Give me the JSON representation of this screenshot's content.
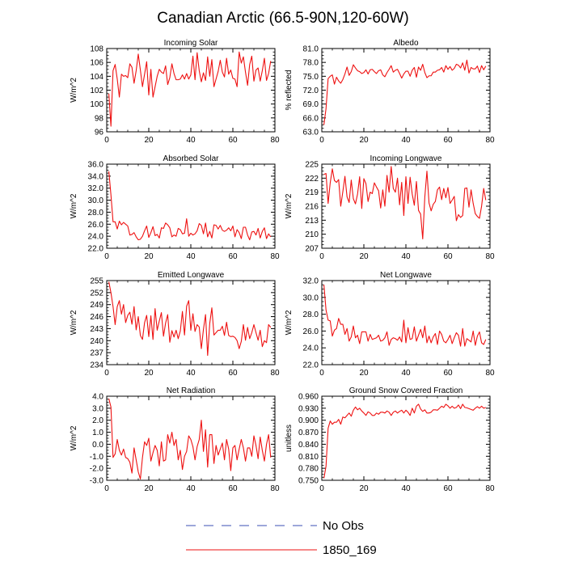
{
  "title": "Canadian Arctic (66.5-90N,120-60W)",
  "legend": {
    "entries": [
      {
        "label": "No Obs",
        "color": "#3b4fb5",
        "dash": true
      },
      {
        "label": "1850_169",
        "color": "#ee1111",
        "dash": false
      }
    ]
  },
  "chart_data": [
    {
      "type": "line",
      "title": "Incoming Solar",
      "ylabel": "W/m^2",
      "ylim": [
        96,
        108
      ],
      "yticks": [
        "96",
        "98",
        "100",
        "102",
        "104",
        "106",
        "108"
      ],
      "xlim": [
        0,
        80
      ],
      "xticks": [
        "0",
        "20",
        "40",
        "60",
        "80"
      ],
      "series": [
        {
          "name": "1850_169",
          "color": "#ee1111",
          "x_start": 1,
          "x_step": 1,
          "values": [
            101.5,
            96.8,
            104.8,
            105.7,
            103.6,
            101.0,
            104.3,
            104.0,
            104.1,
            103.8,
            105.8,
            105.3,
            103.0,
            104.8,
            107.2,
            104.9,
            102.5,
            104.3,
            106.1,
            101.3,
            105.0,
            101.0,
            102.5,
            104.0,
            105.0,
            104.6,
            104.4,
            105.5,
            102.8,
            103.8,
            105.8,
            104.4,
            103.5,
            103.5,
            103.6,
            104.2,
            103.6,
            104.4,
            103.6,
            104.2,
            106.9,
            103.5,
            107.4,
            104.8,
            103.2,
            104.5,
            103.4,
            106.8,
            104.0,
            106.4,
            102.5,
            103.6,
            104.7,
            106.3,
            104.6,
            103.9,
            106.6,
            104.3,
            104.9,
            103.7,
            103.6,
            102.5,
            107.5,
            105.9,
            106.8,
            104.6,
            102.7,
            105.7,
            106.9,
            103.3,
            104.9,
            105.2,
            103.3,
            104.8,
            106.6,
            103.4,
            104.4,
            106.2
          ]
        }
      ]
    },
    {
      "type": "line",
      "title": "Albedo",
      "ylabel": "% reflected",
      "ylim": [
        63.0,
        81.0
      ],
      "yticks": [
        "63.0",
        "66.0",
        "69.0",
        "72.0",
        "75.0",
        "78.0",
        "81.0"
      ],
      "xlim": [
        0,
        80
      ],
      "xticks": [
        "0",
        "20",
        "40",
        "60",
        "80"
      ],
      "series": [
        {
          "name": "1850_169",
          "color": "#ee1111",
          "x_start": 1,
          "x_step": 1,
          "values": [
            64.5,
            68.0,
            74.5,
            75.0,
            75.3,
            73.3,
            74.8,
            74.0,
            73.5,
            74.3,
            75.5,
            77.0,
            75.2,
            76.0,
            77.5,
            76.8,
            76.2,
            76.0,
            75.6,
            75.8,
            76.4,
            75.5,
            76.4,
            76.5,
            76.0,
            75.6,
            76.2,
            76.4,
            75.3,
            74.9,
            75.8,
            76.5,
            77.3,
            75.9,
            76.3,
            76.5,
            75.6,
            74.6,
            75.5,
            76.1,
            76.1,
            75.0,
            76.3,
            76.9,
            74.8,
            77.0,
            76.3,
            77.6,
            75.8,
            74.7,
            75.1,
            75.1,
            75.9,
            75.9,
            76.3,
            76.4,
            76.9,
            75.9,
            77.3,
            76.5,
            77.1,
            76.3,
            76.7,
            77.6,
            77.4,
            76.8,
            77.9,
            76.3,
            78.5,
            75.7,
            76.9,
            76.6,
            76.6,
            77.2,
            75.8,
            77.3,
            76.4,
            77.2
          ]
        }
      ]
    },
    {
      "type": "line",
      "title": "Absorbed Solar",
      "ylabel": "W/m^2",
      "ylim": [
        22.0,
        36.0
      ],
      "yticks": [
        "22.0",
        "24.0",
        "26.0",
        "28.0",
        "30.0",
        "32.0",
        "34.0",
        "36.0"
      ],
      "xlim": [
        0,
        80
      ],
      "xticks": [
        "0",
        "20",
        "40",
        "60",
        "80"
      ],
      "series": [
        {
          "name": "1850_169",
          "color": "#ee1111",
          "x_start": 1,
          "x_step": 1,
          "values": [
            34.8,
            30.9,
            26.4,
            26.4,
            25.2,
            26.5,
            25.9,
            26.3,
            26.0,
            25.7,
            24.2,
            24.3,
            24.6,
            23.9,
            23.4,
            23.5,
            24.0,
            24.9,
            25.7,
            23.8,
            24.6,
            25.6,
            24.1,
            24.3,
            23.7,
            25.4,
            25.3,
            26.2,
            25.9,
            25.4,
            23.9,
            24.2,
            24.0,
            25.3,
            25.1,
            24.4,
            24.5,
            26.9,
            24.0,
            24.5,
            24.2,
            24.4,
            24.9,
            26.1,
            25.8,
            24.4,
            26.2,
            23.9,
            24.8,
            23.7,
            25.9,
            25.8,
            25.2,
            25.8,
            25.0,
            24.8,
            25.0,
            25.4,
            24.9,
            25.7,
            23.9,
            25.1,
            24.6,
            23.6,
            25.5,
            25.5,
            24.2,
            23.4,
            24.7,
            24.8,
            24.2,
            25.3,
            23.7,
            24.8,
            25.4,
            23.6,
            24.4,
            23.9
          ]
        }
      ]
    },
    {
      "type": "line",
      "title": "Incoming Longwave",
      "ylabel": "W/m^2",
      "ylim": [
        207,
        225
      ],
      "yticks": [
        "207",
        "210",
        "213",
        "216",
        "219",
        "222",
        "225"
      ],
      "xlim": [
        0,
        80
      ],
      "xticks": [
        "0",
        "20",
        "40",
        "60",
        "80"
      ],
      "series": [
        {
          "name": "1850_169",
          "color": "#ee1111",
          "x_start": 1,
          "x_step": 1,
          "values": [
            222.8,
            223.0,
            216.6,
            221.0,
            224.0,
            221.5,
            221.1,
            221.7,
            216.0,
            219.1,
            222.4,
            218.0,
            216.8,
            221.6,
            217.6,
            216.5,
            218.6,
            222.3,
            215.5,
            221.9,
            220.8,
            217.0,
            219.0,
            218.7,
            221.0,
            220.1,
            219.3,
            215.6,
            219.5,
            216.0,
            222.6,
            219.0,
            224.5,
            219.8,
            219.0,
            222.0,
            216.3,
            221.1,
            214.0,
            222.3,
            216.6,
            222.2,
            218.6,
            216.2,
            221.3,
            215.1,
            214.3,
            209.0,
            218.0,
            223.5,
            216.7,
            215.0,
            216.4,
            217.0,
            219.5,
            220.1,
            217.4,
            219.8,
            217.8,
            220.0,
            216.6,
            217.3,
            218.1,
            212.9,
            214.2,
            213.6,
            214.0,
            219.8,
            219.9,
            215.8,
            219.5,
            216.6,
            214.4,
            213.8,
            213.4,
            216.0,
            219.8,
            217.3
          ]
        }
      ]
    },
    {
      "type": "line",
      "title": "Emitted Longwave",
      "ylabel": "W/m^2",
      "ylim": [
        234,
        255
      ],
      "yticks": [
        "234",
        "237",
        "240",
        "243",
        "246",
        "249",
        "252",
        "255"
      ],
      "xlim": [
        0,
        80
      ],
      "xticks": [
        "0",
        "20",
        "40",
        "60",
        "80"
      ],
      "series": [
        {
          "name": "1850_169",
          "color": "#ee1111",
          "x_start": 1,
          "x_step": 1,
          "values": [
            254.7,
            252.0,
            248.5,
            244.0,
            248.5,
            250.0,
            246.6,
            249.0,
            244.5,
            246.3,
            247.1,
            244.1,
            248.5,
            242.7,
            246.0,
            241.3,
            240.3,
            244.5,
            246.3,
            241.0,
            246.2,
            240.3,
            248.0,
            242.6,
            244.9,
            247.0,
            241.1,
            244.4,
            246.5,
            239.6,
            242.5,
            240.9,
            242.6,
            240.5,
            242.4,
            247.3,
            241.4,
            248.6,
            250.0,
            242.6,
            246.7,
            242.3,
            244.0,
            243.4,
            238.0,
            242.8,
            246.5,
            236.3,
            244.3,
            248.2,
            241.4,
            242.0,
            242.6,
            242.6,
            243.6,
            241.3,
            244.6,
            241.3,
            241.0,
            241.1,
            240.8,
            240.0,
            238.0,
            239.8,
            244.0,
            240.1,
            243.3,
            240.5,
            242.0,
            244.0,
            242.0,
            240.1,
            242.6,
            238.5,
            240.0,
            239.5,
            244.0,
            243.3
          ]
        }
      ]
    },
    {
      "type": "line",
      "title": "Net Longwave",
      "ylabel": "W/m^2",
      "ylim": [
        22.0,
        32.0
      ],
      "yticks": [
        "22.0",
        "24.0",
        "26.0",
        "28.0",
        "30.0",
        "32.0"
      ],
      "xlim": [
        0,
        80
      ],
      "xticks": [
        "0",
        "20",
        "40",
        "60",
        "80"
      ],
      "series": [
        {
          "name": "1850_169",
          "color": "#ee1111",
          "x_start": 1,
          "x_step": 1,
          "values": [
            31.5,
            28.5,
            27.3,
            27.2,
            25.4,
            26.1,
            26.3,
            27.5,
            26.8,
            26.8,
            25.6,
            26.3,
            24.8,
            25.3,
            26.6,
            25.2,
            25.5,
            24.5,
            25.9,
            25.9,
            25.9,
            24.8,
            25.6,
            25.0,
            25.1,
            25.2,
            25.5,
            24.8,
            24.9,
            25.2,
            25.9,
            24.3,
            25.0,
            25.2,
            25.1,
            24.9,
            25.3,
            24.7,
            27.3,
            24.6,
            26.4,
            25.0,
            25.1,
            26.5,
            24.8,
            25.5,
            26.2,
            25.2,
            26.6,
            24.6,
            25.4,
            24.6,
            25.3,
            25.7,
            24.4,
            26.0,
            25.6,
            24.8,
            24.6,
            25.0,
            25.5,
            24.5,
            25.2,
            25.8,
            25.5,
            24.2,
            26.3,
            24.2,
            25.1,
            24.9,
            24.7,
            26.0,
            24.3,
            25.4,
            25.9,
            24.6,
            24.4,
            25.0
          ]
        }
      ]
    },
    {
      "type": "line",
      "title": "Net Radiation",
      "ylabel": "W/m^2",
      "ylim": [
        -3.0,
        4.0
      ],
      "yticks": [
        "-3.0",
        "-2.0",
        "-1.0",
        "0.0",
        "1.0",
        "2.0",
        "3.0",
        "4.0"
      ],
      "xlim": [
        0,
        80
      ],
      "xticks": [
        "0",
        "20",
        "40",
        "60",
        "80"
      ],
      "series": [
        {
          "name": "1850_169",
          "color": "#ee1111",
          "x_start": 1,
          "x_step": 1,
          "values": [
            3.8,
            3.1,
            -1.1,
            -0.8,
            0.4,
            -0.5,
            -0.9,
            -0.4,
            -1.1,
            -1.2,
            -1.5,
            -2.4,
            -0.3,
            -1.3,
            -2.3,
            -2.9,
            -1.1,
            0.2,
            -0.1,
            0.5,
            -1.4,
            -0.7,
            -0.1,
            -0.5,
            -1.8,
            0.2,
            -1.4,
            -1.3,
            0.8,
            0.1,
            1.0,
            -0.1,
            0.4,
            -1.3,
            -0.5,
            -2.1,
            -1.0,
            -0.6,
            0.7,
            0.4,
            -0.2,
            -1.3,
            -0.2,
            0.4,
            2.0,
            -0.6,
            1.2,
            -1.9,
            0.8,
            0.8,
            -1.6,
            -0.1,
            -0.9,
            -0.4,
            0.1,
            -1.3,
            0.4,
            -0.4,
            -2.2,
            -0.3,
            -0.1,
            -1.3,
            -0.4,
            0.4,
            -0.3,
            -1.4,
            -0.3,
            -0.3,
            -1.0,
            0.7,
            -0.1,
            -1.2,
            0.6,
            -0.5,
            -1.4,
            0.0,
            0.8,
            -1.1
          ]
        }
      ]
    },
    {
      "type": "line",
      "title": "Ground Snow Covered Fraction",
      "ylabel": "unitless",
      "ylim": [
        0.75,
        0.96
      ],
      "yticks": [
        "0.750",
        "0.780",
        "0.810",
        "0.840",
        "0.870",
        "0.900",
        "0.930",
        "0.960"
      ],
      "xlim": [
        0,
        80
      ],
      "xticks": [
        "0",
        "20",
        "40",
        "60",
        "80"
      ],
      "series": [
        {
          "name": "1850_169",
          "color": "#ee1111",
          "x_start": 1,
          "x_step": 1,
          "values": [
            0.755,
            0.785,
            0.88,
            0.898,
            0.89,
            0.895,
            0.895,
            0.902,
            0.89,
            0.908,
            0.906,
            0.912,
            0.918,
            0.91,
            0.925,
            0.933,
            0.926,
            0.93,
            0.923,
            0.918,
            0.912,
            0.921,
            0.918,
            0.912,
            0.912,
            0.918,
            0.915,
            0.92,
            0.92,
            0.918,
            0.923,
            0.92,
            0.912,
            0.92,
            0.923,
            0.918,
            0.922,
            0.925,
            0.918,
            0.925,
            0.92,
            0.912,
            0.93,
            0.918,
            0.935,
            0.94,
            0.928,
            0.922,
            0.926,
            0.918,
            0.918,
            0.92,
            0.926,
            0.926,
            0.925,
            0.93,
            0.935,
            0.932,
            0.94,
            0.936,
            0.93,
            0.935,
            0.93,
            0.932,
            0.938,
            0.929,
            0.94,
            0.932,
            0.931,
            0.929,
            0.927,
            0.925,
            0.93,
            0.934,
            0.93,
            0.935,
            0.93,
            0.932
          ]
        }
      ]
    }
  ]
}
